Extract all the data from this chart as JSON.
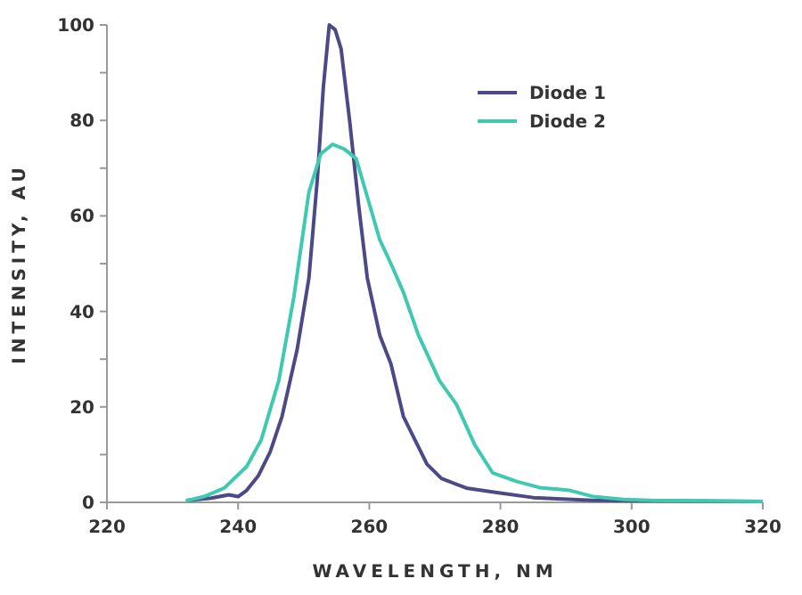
{
  "chart_data": {
    "type": "line",
    "xlabel": "WAVELENGTH, NM",
    "ylabel": "INTENSITY, AU",
    "xlim": [
      220,
      320
    ],
    "xticks": [
      220,
      240,
      260,
      280,
      300,
      320
    ],
    "ylim": [
      0,
      100
    ],
    "yticks": [
      0,
      {
        "value": 10,
        "label": null
      },
      20,
      {
        "value": 30,
        "label": null
      },
      40,
      {
        "value": 50,
        "label": null
      },
      60,
      {
        "value": 70,
        "label": null
      },
      80,
      {
        "value": 90,
        "label": null
      },
      100
    ],
    "legend": "top right",
    "grid": false,
    "marker": "none",
    "line_style": "solid",
    "series": [
      {
        "name": "Diode 1",
        "color": "#4b4a87",
        "x": [
          232.3,
          235.9,
          238.6,
          240,
          241.3,
          243.1,
          244.9,
          246.7,
          249,
          250.8,
          252.1,
          253,
          253.9,
          254.8,
          255.7,
          257,
          258.4,
          259.7,
          261.6,
          263.3,
          265.2,
          267,
          268.8,
          271,
          274.8,
          279.7,
          285,
          294,
          320
        ],
        "values": [
          0.4,
          0.9,
          1.6,
          1.2,
          2.5,
          5.6,
          10.6,
          18,
          32,
          47,
          68,
          87,
          100,
          99,
          95,
          80,
          62,
          47,
          35,
          29,
          18,
          13,
          8,
          5,
          3,
          2,
          1,
          0.4,
          0.2
        ]
      },
      {
        "name": "Diode 2",
        "color": "#3ec9b0",
        "x": [
          232,
          234.8,
          237.9,
          241.3,
          243.5,
          246.2,
          248.5,
          250.8,
          252.6,
          254.4,
          256.2,
          258,
          259.7,
          261.6,
          263.3,
          265.2,
          267.5,
          270.7,
          273.3,
          276.1,
          278.8,
          282.4,
          286,
          290.6,
          294.2,
          298.8,
          303,
          320
        ],
        "values": [
          0.3,
          1.2,
          3,
          7.5,
          13,
          25.5,
          43,
          65,
          73,
          75,
          74,
          72,
          64,
          55,
          50,
          44,
          35,
          25.5,
          20.5,
          12,
          6.2,
          4.4,
          3.1,
          2.5,
          1.2,
          0.6,
          0.4,
          0.2
        ]
      }
    ]
  }
}
